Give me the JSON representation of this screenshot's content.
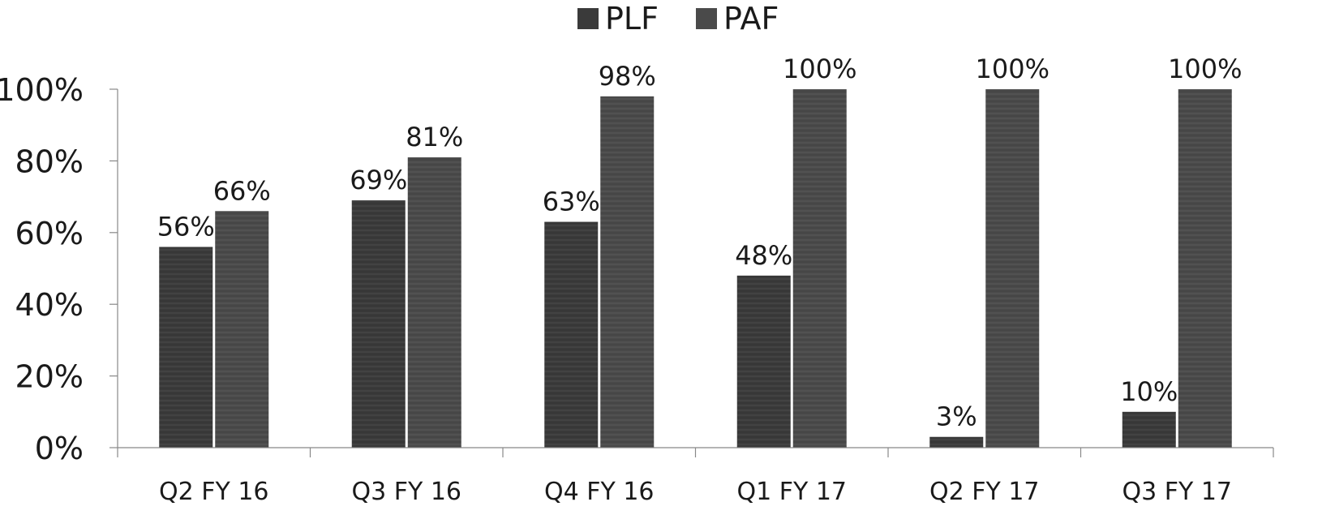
{
  "chart_data": {
    "type": "bar",
    "categories": [
      "Q2 FY 16",
      "Q3 FY 16",
      "Q4 FY 16",
      "Q1 FY 17",
      "Q2 FY 17",
      "Q3 FY 17"
    ],
    "series": [
      {
        "name": "PLF",
        "values": [
          56,
          69,
          63,
          48,
          3,
          10
        ],
        "labels": [
          "56%",
          "69%",
          "63%",
          "48%",
          "3%",
          "10%"
        ],
        "color": "#3a3a3a"
      },
      {
        "name": "PAF",
        "values": [
          66,
          81,
          98,
          100,
          100,
          100
        ],
        "labels": [
          "66%",
          "81%",
          "98%",
          "100%",
          "100%",
          "100%"
        ],
        "color": "#4a4a4a"
      }
    ],
    "yticks": [
      "0%",
      "20%",
      "40%",
      "60%",
      "80%",
      "100%"
    ],
    "ylim": [
      0,
      100
    ],
    "legend_position": "top-center",
    "grid": false
  }
}
